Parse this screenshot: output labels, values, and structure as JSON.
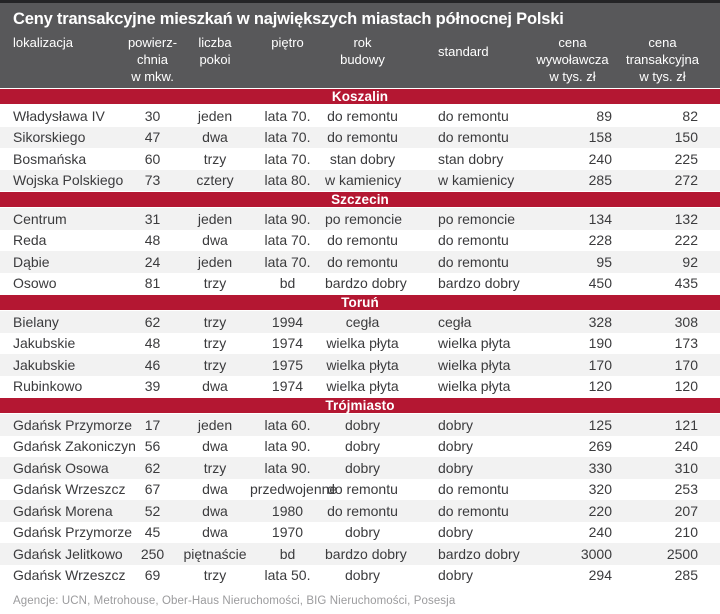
{
  "title": "Ceny transakcyjne mieszkań w największych miastach północnej Polski",
  "footer": "Agencje: UCN, Metrohouse, Ober-Haus Nieruchomości, BIG Nieruchomości, Posesja",
  "colors": {
    "headerBg": "#58585a",
    "topLine": "#242426",
    "accent": "#b41732",
    "shade": "#f2f2f2",
    "text": "#3b3b3d",
    "muted": "#9b9b9d",
    "background": "#ffffff"
  },
  "chart_data": {
    "type": "table",
    "title": "Ceny transakcyjne mieszkań w największych miastach północnej Polski",
    "columns": [
      {
        "key": "lokalizacja",
        "label": "lokalizacja"
      },
      {
        "key": "powierzchnia",
        "label": "powierz-\nchnia\nw mkw."
      },
      {
        "key": "liczba-pokoi",
        "label": "liczba\npokoi"
      },
      {
        "key": "pietro",
        "label": "piętro"
      },
      {
        "key": "rok-budowy",
        "label": "rok\nbudowy"
      },
      {
        "key": "standard",
        "label": "standard"
      },
      {
        "key": "cena-wywolawcza",
        "label": "cena\nwywoławcza\nw tys. zł"
      },
      {
        "key": "cena-transakcyjna",
        "label": "cena\ntransakcyjna\nw tys. zł"
      }
    ],
    "sections": [
      {
        "name": "Koszalin",
        "rows": [
          {
            "shaded": false,
            "cells": [
              "Władysława IV",
              "30",
              "jeden",
              "lata 70.",
              "do remontu",
              "do remontu",
              "89",
              "82"
            ]
          },
          {
            "shaded": true,
            "cells": [
              "Sikorskiego",
              "47",
              "dwa",
              "lata 70.",
              "do remontu",
              "do remontu",
              "158",
              "150"
            ]
          },
          {
            "shaded": false,
            "cells": [
              "Bosmańska",
              "60",
              "trzy",
              "lata 70.",
              "stan dobry",
              "stan dobry",
              "240",
              "225"
            ]
          },
          {
            "shaded": true,
            "cells": [
              "Wojska Polskiego",
              "73",
              "cztery",
              "lata 80.",
              "w kamienicy",
              "w kamienicy",
              "285",
              "272"
            ]
          }
        ]
      },
      {
        "name": "Szczecin",
        "rows": [
          {
            "shaded": true,
            "cells": [
              "Centrum",
              "31",
              "jeden",
              "lata 90.",
              "po remoncie",
              "po remoncie",
              "134",
              "132"
            ]
          },
          {
            "shaded": false,
            "cells": [
              "Reda",
              "48",
              "dwa",
              "lata 70.",
              "do remontu",
              "do remontu",
              "228",
              "222"
            ]
          },
          {
            "shaded": true,
            "cells": [
              "Dąbie",
              "24",
              "jeden",
              "lata 70.",
              "do remontu",
              "do remontu",
              "95",
              "92"
            ]
          },
          {
            "shaded": false,
            "cells": [
              "Osowo",
              "81",
              "trzy",
              "bd",
              "bardzo dobry",
              "bardzo dobry",
              "450",
              "435"
            ]
          }
        ]
      },
      {
        "name": "Toruń",
        "rows": [
          {
            "shaded": true,
            "cells": [
              "Bielany",
              "62",
              "trzy",
              "1994",
              "cegła",
              "cegła",
              "328",
              "308"
            ]
          },
          {
            "shaded": false,
            "cells": [
              "Jakubskie",
              "48",
              "trzy",
              "1974",
              "wielka płyta",
              "wielka płyta",
              "190",
              "173"
            ]
          },
          {
            "shaded": true,
            "cells": [
              "Jakubskie",
              "46",
              "trzy",
              "1975",
              "wielka płyta",
              "wielka płyta",
              "170",
              "170"
            ]
          },
          {
            "shaded": false,
            "cells": [
              "Rubinkowo",
              "39",
              "dwa",
              "1974",
              "wielka płyta",
              "wielka płyta",
              "120",
              "120"
            ]
          }
        ]
      },
      {
        "name": "Trójmiasto",
        "rows": [
          {
            "shaded": true,
            "cells": [
              "Gdańsk Przymorze",
              "17",
              "jeden",
              "lata 60.",
              "dobry",
              "dobry",
              "125",
              "121"
            ]
          },
          {
            "shaded": false,
            "cells": [
              "Gdańsk Zakoniczyn",
              "56",
              "dwa",
              "lata 90.",
              "dobry",
              "dobry",
              "269",
              "240"
            ]
          },
          {
            "shaded": true,
            "cells": [
              "Gdańsk Osowa",
              "62",
              "trzy",
              "lata 90.",
              "dobry",
              "dobry",
              "330",
              "310"
            ]
          },
          {
            "shaded": false,
            "cells": [
              "Gdańsk Wrzeszcz",
              "67",
              "dwa",
              "przedwojenne",
              "do remontu",
              "do remontu",
              "320",
              "253"
            ]
          },
          {
            "shaded": true,
            "cells": [
              "Gdańsk Morena",
              "52",
              "dwa",
              "1980",
              "do remontu",
              "do remontu",
              "220",
              "207"
            ]
          },
          {
            "shaded": false,
            "cells": [
              "Gdańsk Przymorze",
              "45",
              "dwa",
              "1970",
              "dobry",
              "dobry",
              "240",
              "210"
            ]
          },
          {
            "shaded": true,
            "cells": [
              "Gdańsk Jelitkowo",
              "250",
              "piętnaście",
              "bd",
              "bardzo dobry",
              "bardzo dobry",
              "3000",
              "2500"
            ]
          },
          {
            "shaded": false,
            "cells": [
              "Gdańsk Wrzeszcz",
              "69",
              "trzy",
              "lata 50.",
              "dobry",
              "dobry",
              "294",
              "285"
            ]
          }
        ]
      }
    ],
    "source": "Agencje: UCN, Metrohouse, Ober-Haus Nieruchomości, BIG Nieruchomości, Posesja"
  }
}
